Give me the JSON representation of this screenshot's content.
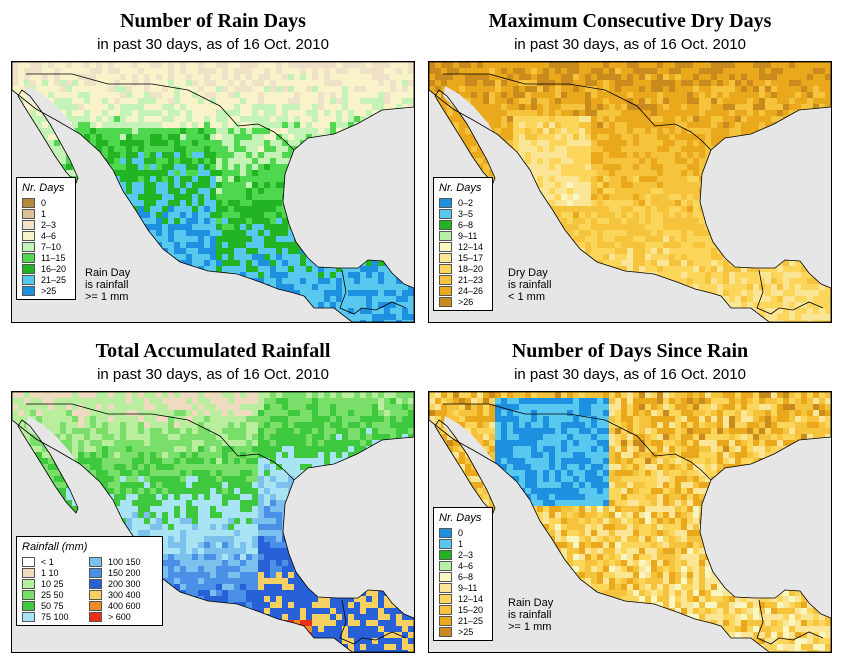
{
  "panels": [
    {
      "title": "Number of Rain Days",
      "subtitle": "in past 30 days, as of  16 Oct. 2010",
      "legend_title": "Nr. Days",
      "legend_items": [
        {
          "label": "0",
          "color": "#b5883a"
        },
        {
          "label": "1",
          "color": "#dcbf95"
        },
        {
          "label": "2–3",
          "color": "#efe2c8"
        },
        {
          "label": "4–6",
          "color": "#f8f3c8"
        },
        {
          "label": "7–10",
          "color": "#c5f2b6"
        },
        {
          "label": "11–15",
          "color": "#4fd84f"
        },
        {
          "label": "16–20",
          "color": "#22b422"
        },
        {
          "label": "21–25",
          "color": "#59c8ee"
        },
        {
          "label": ">25",
          "color": "#1e90e0"
        }
      ],
      "note": [
        "Rain Day",
        "is rainfall",
        ">= 1 mm"
      ]
    },
    {
      "title": "Maximum Consecutive Dry Days",
      "subtitle": "in past 30 days, as of  16 Oct. 2010",
      "legend_title": "Nr. Days",
      "legend_items": [
        {
          "label": "0–2",
          "color": "#1e90e0"
        },
        {
          "label": "3–5",
          "color": "#59c8ee"
        },
        {
          "label": "6–8",
          "color": "#22b422"
        },
        {
          "label": "9–11",
          "color": "#b6f0a6"
        },
        {
          "label": "12–14",
          "color": "#f8f6c2"
        },
        {
          "label": "15–17",
          "color": "#fbe597"
        },
        {
          "label": "18–20",
          "color": "#fbd65a"
        },
        {
          "label": "21–23",
          "color": "#f5c43c"
        },
        {
          "label": "24–26",
          "color": "#eaa81c"
        },
        {
          "label": ">26",
          "color": "#c98a1e"
        }
      ],
      "note": [
        "Dry Day",
        "is rainfall",
        "< 1 mm"
      ]
    },
    {
      "title": "Total Accumulated Rainfall",
      "subtitle": "in past 30 days, as of  16 Oct. 2010",
      "legend_title": "Rainfall (mm)",
      "legend_items": [
        {
          "label": "< 1",
          "color": "#ffffff"
        },
        {
          "label": "1    10",
          "color": "#efdcc0"
        },
        {
          "label": "10    25",
          "color": "#b8ee9e"
        },
        {
          "label": "25    50",
          "color": "#7ade6a"
        },
        {
          "label": "50    75",
          "color": "#3ec83e"
        },
        {
          "label": "75  100",
          "color": "#a8e4f4"
        },
        {
          "label": "100  150",
          "color": "#7cc0ee"
        },
        {
          "label": "150  200",
          "color": "#4a90e6"
        },
        {
          "label": "200  300",
          "color": "#2860d8"
        },
        {
          "label": "300  400",
          "color": "#f6d060"
        },
        {
          "label": "400  600",
          "color": "#f08c28"
        },
        {
          "label": "> 600",
          "color": "#e83018"
        }
      ],
      "note": []
    },
    {
      "title": "Number of Days Since Rain",
      "subtitle": "in past 30 days, as of  16 Oct. 2010",
      "legend_title": "Nr. Days",
      "legend_items": [
        {
          "label": "0",
          "color": "#1e90e0"
        },
        {
          "label": "1",
          "color": "#59c8ee"
        },
        {
          "label": "2–3",
          "color": "#22b422"
        },
        {
          "label": "4–6",
          "color": "#b6f0a6"
        },
        {
          "label": "6–8",
          "color": "#f8f6c2"
        },
        {
          "label": "9–11",
          "color": "#fbe597"
        },
        {
          "label": "12–14",
          "color": "#fbd65a"
        },
        {
          "label": "15–20",
          "color": "#f5c43c"
        },
        {
          "label": "21–25",
          "color": "#eaa81c"
        },
        {
          "label": ">25",
          "color": "#c98a1e"
        }
      ],
      "note": [
        "Rain Day",
        "is rainfall",
        ">= 1 mm"
      ]
    }
  ]
}
